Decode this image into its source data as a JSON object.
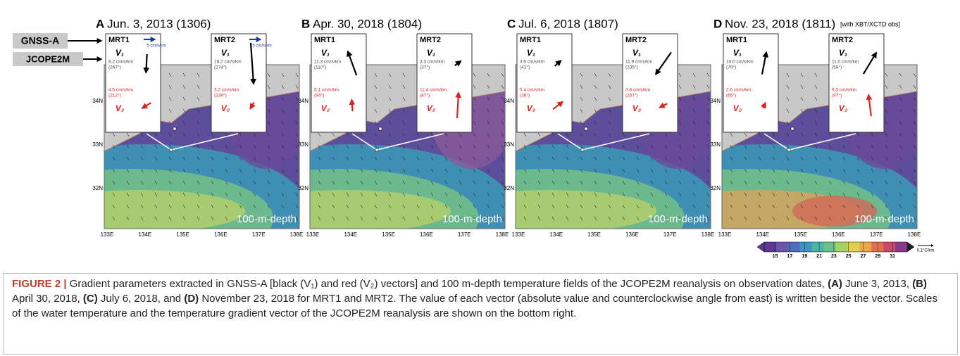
{
  "side_labels": {
    "gnss": "GNSS-A",
    "jcope": "JCOPE2M"
  },
  "lon_ticks": [
    "133E",
    "134E",
    "135E",
    "136E",
    "137E",
    "138E"
  ],
  "lat_ticks": [
    "34N",
    "33N",
    "32N"
  ],
  "panels": [
    {
      "letter": "A",
      "title": "Jun. 3, 2013 (1306)",
      "depth": "100-m-depth",
      "scale": {
        "value": 5,
        "label": "5 cm/s/km"
      },
      "mrt1": {
        "name": "MRT1",
        "v1": {
          "symbol": "V₁",
          "value": 8.2,
          "angle": 267,
          "label": "8.2 cm/s/km",
          "angle_label": "(267°)"
        },
        "v2": {
          "symbol": "V₂",
          "value": 4.5,
          "angle": 212,
          "label": "4.5 cm/s/km",
          "angle_label": "(212°)"
        }
      },
      "mrt2": {
        "name": "MRT2",
        "v1": {
          "symbol": "V₁",
          "value": 18.2,
          "angle": 274,
          "label": "18.2 cm/s/km",
          "angle_label": "(274°)"
        },
        "v2": {
          "symbol": "V₂",
          "value": 3.2,
          "angle": 239,
          "label": "3.2 cm/s/km",
          "angle_label": "(239°)"
        }
      }
    },
    {
      "letter": "B",
      "title": "Apr. 30, 2018 (1804)",
      "depth": "100-m-depth",
      "mrt1": {
        "name": "MRT1",
        "v1": {
          "symbol": "V₁",
          "value": 11.3,
          "angle": 110,
          "label": "11.3 cm/s/km",
          "angle_label": "(110°)"
        },
        "v2": {
          "symbol": "V₂",
          "value": 5.1,
          "angle": 94,
          "label": "5.1 cm/s/km",
          "angle_label": "(94°)"
        }
      },
      "mrt2": {
        "name": "MRT2",
        "v1": {
          "symbol": "V₁",
          "value": 3.3,
          "angle": 37,
          "label": "3.3 cm/s/km",
          "angle_label": "(37°)"
        },
        "v2": {
          "symbol": "V₂",
          "value": 11.4,
          "angle": 87,
          "label": "11.4 cm/s/km",
          "angle_label": "(87°)"
        }
      }
    },
    {
      "letter": "C",
      "title": "Jul. 6, 2018 (1807)",
      "depth": "100-m-depth",
      "mrt1": {
        "name": "MRT1",
        "v1": {
          "symbol": "V₁",
          "value": 3.6,
          "angle": 41,
          "label": "3.6 cm/s/km",
          "angle_label": "(41°)"
        },
        "v2": {
          "symbol": "V₂",
          "value": 5.4,
          "angle": 38,
          "label": "5.4 cm/s/km",
          "angle_label": "(38°)"
        }
      },
      "mrt2": {
        "name": "MRT2",
        "v1": {
          "symbol": "V₁",
          "value": 11.9,
          "angle": 235,
          "label": "11.9 cm/s/km",
          "angle_label": "(235°)"
        },
        "v2": {
          "symbol": "V₂",
          "value": 3.8,
          "angle": 207,
          "label": "3.8 cm/s/km",
          "angle_label": "(207°)"
        }
      }
    },
    {
      "letter": "D",
      "title": "Nov. 23, 2018 (1811)",
      "note": "[with XBT/XCTD obs]",
      "depth": "100-m-depth",
      "mrt1": {
        "name": "MRT1",
        "v1": {
          "symbol": "V₁",
          "value": 10.0,
          "angle": 79,
          "label": "10.0 cm/s/km",
          "angle_label": "(79°)"
        },
        "v2": {
          "symbol": "V₂",
          "value": 2.6,
          "angle": 65,
          "label": "2.6 cm/s/km",
          "angle_label": "(65°)"
        }
      },
      "mrt2": {
        "name": "MRT2",
        "v1": {
          "symbol": "V₁",
          "value": 11.0,
          "angle": 59,
          "label": "11.0 cm/s/km",
          "angle_label": "(59°)"
        },
        "v2": {
          "symbol": "V₂",
          "value": 9.5,
          "angle": 97,
          "label": "9.5 cm/s/km",
          "angle_label": "(97°)"
        }
      }
    }
  ],
  "colorbar": {
    "range": [
      13.5,
      33
    ],
    "ticks": [
      15,
      17,
      19,
      21,
      23,
      25,
      27,
      29,
      31
    ],
    "scale_label": "0.1°C/km"
  },
  "caption": {
    "label": "FIGURE 2 |",
    "segments": [
      {
        "text": " Gradient parameters extracted in GNSS-A [black (V₁) and red (V₂) vectors] and 100 m-depth temperature fields of the JCOPE2M reanalysis on observation dates, ",
        "bold": false
      },
      {
        "text": "(A)",
        "bold": true
      },
      {
        "text": " June 3, 2013, ",
        "bold": false
      },
      {
        "text": "(B)",
        "bold": true
      },
      {
        "text": " April 30, 2018, ",
        "bold": false
      },
      {
        "text": "(C)",
        "bold": true
      },
      {
        "text": " July 6, 2018, and ",
        "bold": false
      },
      {
        "text": "(D)",
        "bold": true
      },
      {
        "text": " November 23, 2018 for MRT1 and MRT2. The value of each vector (absolute value and counterclockwise angle from east) is written beside the vector. Scales of the water temperature and the temperature gradient vector of the JCOPE2M reanalysis are shown on the bottom right.",
        "bold": false
      }
    ]
  }
}
